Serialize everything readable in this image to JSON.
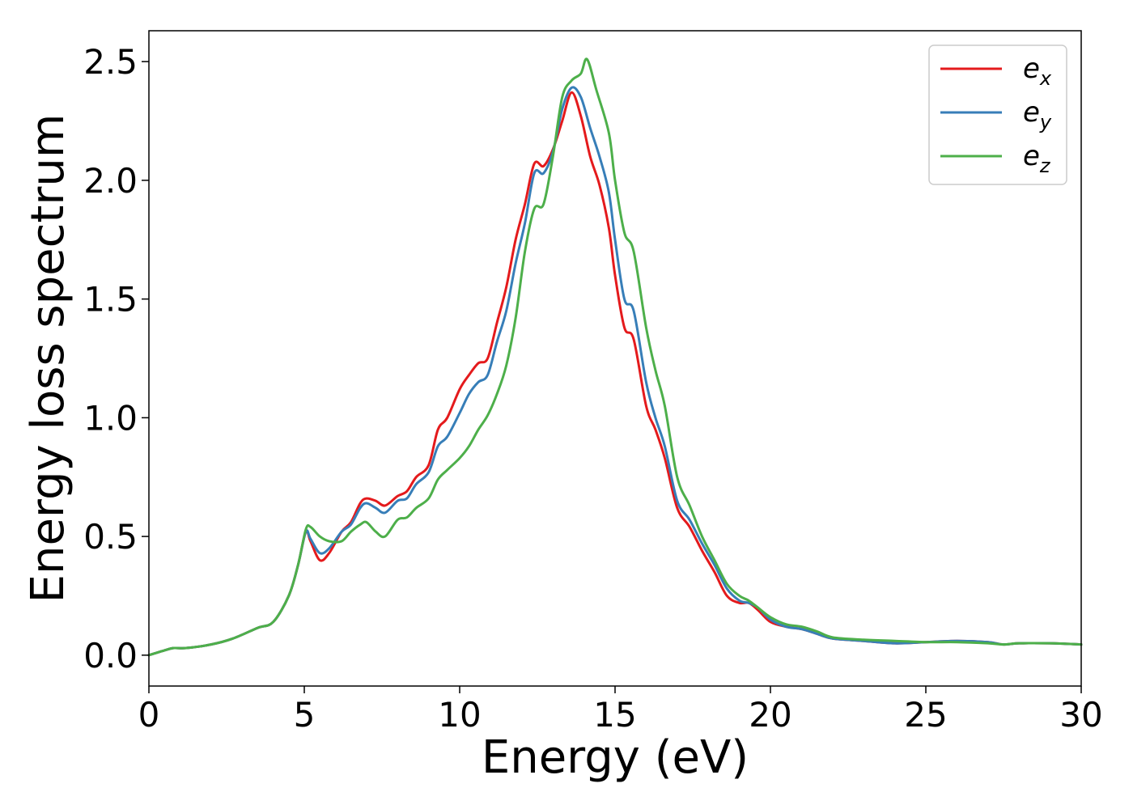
{
  "chart_data": {
    "type": "line",
    "title": "",
    "xlabel": "Energy (eV)",
    "ylabel": "Energy loss spectrum",
    "xlim": [
      0,
      30
    ],
    "ylim": [
      -0.13,
      2.63
    ],
    "xticks": [
      0,
      5,
      10,
      15,
      20,
      25,
      30
    ],
    "xtick_labels": [
      "0",
      "5",
      "10",
      "15",
      "20",
      "25",
      "30"
    ],
    "yticks": [
      0.0,
      0.5,
      1.0,
      1.5,
      2.0,
      2.5
    ],
    "ytick_labels": [
      "0.0",
      "0.5",
      "1.0",
      "1.5",
      "2.0",
      "2.5"
    ],
    "grid": false,
    "legend_position": "top-right",
    "series": [
      {
        "name": "e_x",
        "label_base": "e",
        "label_sub": "x",
        "color": "#e41a1c",
        "x": [
          0.0,
          0.5,
          0.8,
          1.2,
          2.0,
          2.7,
          3.5,
          4.0,
          4.5,
          4.8,
          5.05,
          5.2,
          5.5,
          5.8,
          6.2,
          6.5,
          6.8,
          7.0,
          7.3,
          7.6,
          8.0,
          8.3,
          8.6,
          9.0,
          9.3,
          9.6,
          10.0,
          10.3,
          10.6,
          10.9,
          11.2,
          11.5,
          11.8,
          12.1,
          12.4,
          12.7,
          13.0,
          13.3,
          13.6,
          13.9,
          14.2,
          14.5,
          14.8,
          15.0,
          15.3,
          15.6,
          16.0,
          16.3,
          16.6,
          17.0,
          17.4,
          17.8,
          18.2,
          18.6,
          19.0,
          19.3,
          19.6,
          20.0,
          20.5,
          21.0,
          21.5,
          22.0,
          23.0,
          24.0,
          25.0,
          26.0,
          27.0,
          27.5,
          28.0,
          29.0,
          30.0
        ],
        "y": [
          0.0,
          0.02,
          0.03,
          0.03,
          0.045,
          0.07,
          0.115,
          0.14,
          0.25,
          0.38,
          0.52,
          0.48,
          0.4,
          0.43,
          0.52,
          0.56,
          0.64,
          0.66,
          0.65,
          0.63,
          0.67,
          0.69,
          0.75,
          0.8,
          0.95,
          1.0,
          1.12,
          1.18,
          1.23,
          1.25,
          1.4,
          1.55,
          1.75,
          1.9,
          2.07,
          2.06,
          2.13,
          2.25,
          2.37,
          2.27,
          2.1,
          1.98,
          1.8,
          1.6,
          1.38,
          1.33,
          1.05,
          0.95,
          0.83,
          0.62,
          0.54,
          0.44,
          0.35,
          0.25,
          0.22,
          0.22,
          0.19,
          0.14,
          0.12,
          0.11,
          0.09,
          0.07,
          0.06,
          0.05,
          0.055,
          0.06,
          0.055,
          0.045,
          0.05,
          0.05,
          0.045
        ]
      },
      {
        "name": "e_y",
        "label_base": "e",
        "label_sub": "y",
        "color": "#377eb8",
        "x": [
          0.0,
          0.5,
          0.8,
          1.2,
          2.0,
          2.7,
          3.5,
          4.0,
          4.5,
          4.8,
          5.05,
          5.2,
          5.5,
          5.8,
          6.2,
          6.5,
          6.8,
          7.0,
          7.3,
          7.6,
          8.0,
          8.3,
          8.6,
          9.0,
          9.3,
          9.6,
          10.0,
          10.3,
          10.6,
          10.9,
          11.2,
          11.5,
          11.8,
          12.1,
          12.4,
          12.7,
          13.0,
          13.3,
          13.6,
          13.9,
          14.2,
          14.5,
          14.8,
          15.0,
          15.3,
          15.6,
          16.0,
          16.3,
          16.6,
          17.0,
          17.4,
          17.8,
          18.2,
          18.6,
          19.0,
          19.3,
          19.6,
          20.0,
          20.5,
          21.0,
          21.5,
          22.0,
          23.0,
          24.0,
          25.0,
          26.0,
          27.0,
          27.5,
          28.0,
          29.0,
          30.0
        ],
        "y": [
          0.0,
          0.02,
          0.03,
          0.03,
          0.045,
          0.07,
          0.115,
          0.14,
          0.25,
          0.38,
          0.52,
          0.49,
          0.43,
          0.45,
          0.52,
          0.55,
          0.62,
          0.64,
          0.62,
          0.6,
          0.65,
          0.66,
          0.72,
          0.77,
          0.88,
          0.92,
          1.02,
          1.1,
          1.15,
          1.18,
          1.32,
          1.45,
          1.65,
          1.82,
          2.03,
          2.03,
          2.12,
          2.3,
          2.39,
          2.35,
          2.22,
          2.1,
          1.95,
          1.75,
          1.5,
          1.45,
          1.15,
          1.0,
          0.88,
          0.65,
          0.57,
          0.47,
          0.38,
          0.28,
          0.23,
          0.22,
          0.2,
          0.15,
          0.12,
          0.11,
          0.09,
          0.07,
          0.06,
          0.05,
          0.055,
          0.06,
          0.055,
          0.045,
          0.05,
          0.05,
          0.045
        ]
      },
      {
        "name": "e_z",
        "label_base": "e",
        "label_sub": "z",
        "color": "#4daf4a",
        "x": [
          0.0,
          0.5,
          0.8,
          1.2,
          2.0,
          2.7,
          3.5,
          4.0,
          4.5,
          4.8,
          5.05,
          5.2,
          5.5,
          5.8,
          6.2,
          6.5,
          6.8,
          7.0,
          7.3,
          7.6,
          8.0,
          8.3,
          8.6,
          9.0,
          9.3,
          9.6,
          10.0,
          10.3,
          10.6,
          10.9,
          11.2,
          11.5,
          11.8,
          12.1,
          12.4,
          12.7,
          13.0,
          13.3,
          13.6,
          13.9,
          14.1,
          14.4,
          14.8,
          15.0,
          15.3,
          15.6,
          16.0,
          16.3,
          16.6,
          17.0,
          17.4,
          17.8,
          18.2,
          18.6,
          19.0,
          19.3,
          19.6,
          20.0,
          20.5,
          21.0,
          21.5,
          22.0,
          23.0,
          24.0,
          25.0,
          26.0,
          27.0,
          27.5,
          28.0,
          29.0,
          30.0
        ],
        "y": [
          0.0,
          0.02,
          0.03,
          0.03,
          0.045,
          0.07,
          0.115,
          0.14,
          0.25,
          0.38,
          0.53,
          0.54,
          0.5,
          0.48,
          0.48,
          0.52,
          0.55,
          0.56,
          0.52,
          0.5,
          0.57,
          0.58,
          0.62,
          0.66,
          0.74,
          0.78,
          0.83,
          0.88,
          0.95,
          1.01,
          1.1,
          1.22,
          1.42,
          1.7,
          1.88,
          1.9,
          2.1,
          2.35,
          2.42,
          2.45,
          2.51,
          2.38,
          2.2,
          2.0,
          1.78,
          1.7,
          1.38,
          1.2,
          1.05,
          0.75,
          0.63,
          0.5,
          0.4,
          0.3,
          0.25,
          0.23,
          0.2,
          0.16,
          0.13,
          0.12,
          0.1,
          0.075,
          0.065,
          0.06,
          0.055,
          0.055,
          0.05,
          0.045,
          0.05,
          0.05,
          0.045
        ]
      }
    ]
  }
}
